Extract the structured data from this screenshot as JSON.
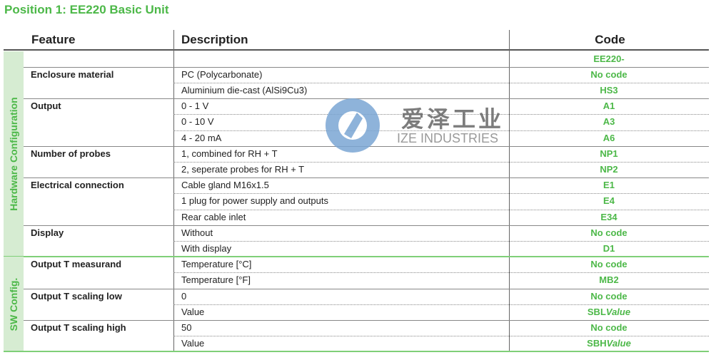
{
  "title": "Position 1: EE220 Basic Unit",
  "headers": {
    "feature": "Feature",
    "description": "Description",
    "code": "Code"
  },
  "sections": [
    {
      "label": "Hardware Configuration",
      "groups": [
        {
          "feature": "",
          "options": [
            {
              "desc": "",
              "code": "EE220-"
            }
          ]
        },
        {
          "feature": "Enclosure material",
          "options": [
            {
              "desc": "PC (Polycarbonate)",
              "code": "No code"
            },
            {
              "desc": "Aluminium die-cast (AlSi9Cu3)",
              "code": "HS3"
            }
          ]
        },
        {
          "feature": "Output",
          "options": [
            {
              "desc": "0 - 1 V",
              "code": "A1"
            },
            {
              "desc": "0 - 10 V",
              "code": "A3"
            },
            {
              "desc": "4 - 20 mA",
              "code": "A6"
            }
          ]
        },
        {
          "feature": "Number of probes",
          "options": [
            {
              "desc": "1, combined for RH + T",
              "code": "NP1"
            },
            {
              "desc": "2, seperate probes for RH + T",
              "code": "NP2"
            }
          ]
        },
        {
          "feature": "Electrical connection",
          "options": [
            {
              "desc": "Cable gland M16x1.5",
              "code": "E1"
            },
            {
              "desc": "1 plug for power supply and outputs",
              "code": "E4"
            },
            {
              "desc": "Rear cable inlet",
              "code": "E34"
            }
          ]
        },
        {
          "feature": "Display",
          "options": [
            {
              "desc": "Without",
              "code": "No code"
            },
            {
              "desc": "With display",
              "code": "D1"
            }
          ]
        }
      ]
    },
    {
      "label": "SW Config.",
      "groups": [
        {
          "feature": "Output T measurand",
          "options": [
            {
              "desc": "Temperature [°C]",
              "code": "No code"
            },
            {
              "desc": "Temperature [°F]",
              "code": "MB2"
            }
          ]
        },
        {
          "feature": "Output T scaling low",
          "options": [
            {
              "desc": "0",
              "code": "No code"
            },
            {
              "desc": "Value",
              "code": "SBL",
              "code_italic": "Value"
            }
          ]
        },
        {
          "feature": "Output T scaling high",
          "options": [
            {
              "desc": "50",
              "code": "No code"
            },
            {
              "desc": "Value",
              "code": "SBH",
              "code_italic": "Value"
            }
          ]
        }
      ]
    }
  ],
  "watermark": {
    "cn": "爱泽工业",
    "en": "IZE INDUSTRIES",
    "color": "#7ba6d4"
  },
  "colors": {
    "accent": "#4cb848",
    "sidebar": "#d6ecd2"
  }
}
